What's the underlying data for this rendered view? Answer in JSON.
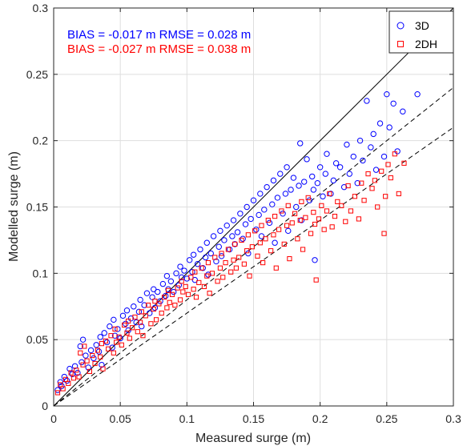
{
  "chart_data": {
    "type": "scatter",
    "xlabel": "Measured surge (m)",
    "ylabel": "Modelled surge (m)",
    "xlim": [
      0,
      0.3
    ],
    "ylim": [
      0,
      0.3
    ],
    "xticks": [
      "0",
      "0.05",
      "0.1",
      "0.15",
      "0.2",
      "0.25",
      "0.3"
    ],
    "yticks": [
      "0",
      "0.05",
      "0.1",
      "0.15",
      "0.2",
      "0.25",
      "0.3"
    ],
    "grid": true,
    "legend_position": "top-right",
    "annotations": [
      {
        "text": "BIAS = -0.017 m  RMSE = 0.028 m",
        "color": "#0000ff"
      },
      {
        "text": "BIAS = -0.027 m  RMSE = 0.038 m",
        "color": "#ff0000"
      }
    ],
    "reference_lines": [
      {
        "style": "solid",
        "x": [
          0,
          0.3
        ],
        "y": [
          0,
          0.3
        ]
      },
      {
        "style": "dashed",
        "x": [
          0,
          0.3
        ],
        "y": [
          0,
          0.24
        ]
      },
      {
        "style": "dashed",
        "x": [
          0,
          0.3
        ],
        "y": [
          0,
          0.21
        ]
      }
    ],
    "series": [
      {
        "name": "3D",
        "marker": "circle",
        "color": "#0000ff",
        "points": [
          [
            0.003,
            0.012
          ],
          [
            0.005,
            0.018
          ],
          [
            0.006,
            0.015
          ],
          [
            0.008,
            0.022
          ],
          [
            0.01,
            0.019
          ],
          [
            0.012,
            0.028
          ],
          [
            0.014,
            0.024
          ],
          [
            0.016,
            0.03
          ],
          [
            0.018,
            0.025
          ],
          [
            0.02,
            0.045
          ],
          [
            0.021,
            0.033
          ],
          [
            0.022,
            0.05
          ],
          [
            0.024,
            0.038
          ],
          [
            0.026,
            0.029
          ],
          [
            0.028,
            0.042
          ],
          [
            0.03,
            0.036
          ],
          [
            0.032,
            0.046
          ],
          [
            0.034,
            0.041
          ],
          [
            0.035,
            0.052
          ],
          [
            0.036,
            0.031
          ],
          [
            0.038,
            0.055
          ],
          [
            0.04,
            0.048
          ],
          [
            0.042,
            0.06
          ],
          [
            0.044,
            0.044
          ],
          [
            0.045,
            0.065
          ],
          [
            0.046,
            0.053
          ],
          [
            0.048,
            0.058
          ],
          [
            0.05,
            0.051
          ],
          [
            0.052,
            0.068
          ],
          [
            0.054,
            0.062
          ],
          [
            0.055,
            0.072
          ],
          [
            0.056,
            0.057
          ],
          [
            0.058,
            0.066
          ],
          [
            0.06,
            0.075
          ],
          [
            0.062,
            0.063
          ],
          [
            0.064,
            0.071
          ],
          [
            0.065,
            0.08
          ],
          [
            0.066,
            0.06
          ],
          [
            0.068,
            0.076
          ],
          [
            0.07,
            0.085
          ],
          [
            0.072,
            0.07
          ],
          [
            0.074,
            0.082
          ],
          [
            0.075,
            0.088
          ],
          [
            0.076,
            0.074
          ],
          [
            0.078,
            0.086
          ],
          [
            0.08,
            0.079
          ],
          [
            0.082,
            0.092
          ],
          [
            0.084,
            0.083
          ],
          [
            0.085,
            0.098
          ],
          [
            0.086,
            0.088
          ],
          [
            0.088,
            0.094
          ],
          [
            0.09,
            0.086
          ],
          [
            0.092,
            0.1
          ],
          [
            0.094,
            0.091
          ],
          [
            0.095,
            0.105
          ],
          [
            0.096,
            0.097
          ],
          [
            0.098,
            0.102
          ],
          [
            0.1,
            0.096
          ],
          [
            0.102,
            0.11
          ],
          [
            0.104,
            0.101
          ],
          [
            0.105,
            0.114
          ],
          [
            0.106,
            0.095
          ],
          [
            0.108,
            0.107
          ],
          [
            0.11,
            0.118
          ],
          [
            0.112,
            0.104
          ],
          [
            0.114,
            0.112
          ],
          [
            0.115,
            0.123
          ],
          [
            0.116,
            0.099
          ],
          [
            0.118,
            0.115
          ],
          [
            0.12,
            0.128
          ],
          [
            0.122,
            0.109
          ],
          [
            0.124,
            0.12
          ],
          [
            0.125,
            0.132
          ],
          [
            0.126,
            0.113
          ],
          [
            0.128,
            0.125
          ],
          [
            0.13,
            0.136
          ],
          [
            0.132,
            0.118
          ],
          [
            0.134,
            0.128
          ],
          [
            0.135,
            0.14
          ],
          [
            0.136,
            0.122
          ],
          [
            0.138,
            0.131
          ],
          [
            0.14,
            0.145
          ],
          [
            0.142,
            0.126
          ],
          [
            0.144,
            0.137
          ],
          [
            0.145,
            0.15
          ],
          [
            0.146,
            0.115
          ],
          [
            0.148,
            0.141
          ],
          [
            0.15,
            0.155
          ],
          [
            0.152,
            0.133
          ],
          [
            0.154,
            0.144
          ],
          [
            0.155,
            0.16
          ],
          [
            0.156,
            0.128
          ],
          [
            0.158,
            0.148
          ],
          [
            0.16,
            0.165
          ],
          [
            0.162,
            0.138
          ],
          [
            0.164,
            0.152
          ],
          [
            0.165,
            0.17
          ],
          [
            0.166,
            0.123
          ],
          [
            0.168,
            0.157
          ],
          [
            0.17,
            0.175
          ],
          [
            0.172,
            0.145
          ],
          [
            0.174,
            0.16
          ],
          [
            0.175,
            0.18
          ],
          [
            0.176,
            0.132
          ],
          [
            0.178,
            0.163
          ],
          [
            0.18,
            0.172
          ],
          [
            0.182,
            0.15
          ],
          [
            0.184,
            0.166
          ],
          [
            0.185,
            0.198
          ],
          [
            0.186,
            0.14
          ],
          [
            0.188,
            0.169
          ],
          [
            0.19,
            0.186
          ],
          [
            0.192,
            0.155
          ],
          [
            0.194,
            0.173
          ],
          [
            0.195,
            0.163
          ],
          [
            0.196,
            0.11
          ],
          [
            0.198,
            0.168
          ],
          [
            0.2,
            0.18
          ],
          [
            0.202,
            0.158
          ],
          [
            0.204,
            0.175
          ],
          [
            0.205,
            0.19
          ],
          [
            0.208,
            0.16
          ],
          [
            0.21,
            0.17
          ],
          [
            0.212,
            0.183
          ],
          [
            0.215,
            0.18
          ],
          [
            0.218,
            0.165
          ],
          [
            0.22,
            0.197
          ],
          [
            0.222,
            0.175
          ],
          [
            0.225,
            0.188
          ],
          [
            0.228,
            0.168
          ],
          [
            0.23,
            0.2
          ],
          [
            0.232,
            0.185
          ],
          [
            0.235,
            0.23
          ],
          [
            0.238,
            0.195
          ],
          [
            0.24,
            0.205
          ],
          [
            0.242,
            0.178
          ],
          [
            0.245,
            0.213
          ],
          [
            0.248,
            0.188
          ],
          [
            0.25,
            0.235
          ],
          [
            0.252,
            0.21
          ],
          [
            0.255,
            0.228
          ],
          [
            0.258,
            0.192
          ],
          [
            0.262,
            0.222
          ],
          [
            0.273,
            0.235
          ]
        ]
      },
      {
        "name": "2DH",
        "marker": "square",
        "color": "#ff0000",
        "points": [
          [
            0.003,
            0.01
          ],
          [
            0.005,
            0.016
          ],
          [
            0.007,
            0.013
          ],
          [
            0.009,
            0.02
          ],
          [
            0.011,
            0.017
          ],
          [
            0.013,
            0.025
          ],
          [
            0.015,
            0.021
          ],
          [
            0.017,
            0.027
          ],
          [
            0.019,
            0.022
          ],
          [
            0.02,
            0.04
          ],
          [
            0.022,
            0.031
          ],
          [
            0.023,
            0.045
          ],
          [
            0.025,
            0.034
          ],
          [
            0.027,
            0.026
          ],
          [
            0.029,
            0.038
          ],
          [
            0.031,
            0.032
          ],
          [
            0.033,
            0.042
          ],
          [
            0.035,
            0.037
          ],
          [
            0.036,
            0.047
          ],
          [
            0.037,
            0.028
          ],
          [
            0.039,
            0.049
          ],
          [
            0.041,
            0.043
          ],
          [
            0.043,
            0.053
          ],
          [
            0.045,
            0.04
          ],
          [
            0.046,
            0.058
          ],
          [
            0.047,
            0.048
          ],
          [
            0.049,
            0.052
          ],
          [
            0.051,
            0.046
          ],
          [
            0.053,
            0.061
          ],
          [
            0.055,
            0.055
          ],
          [
            0.056,
            0.064
          ],
          [
            0.057,
            0.051
          ],
          [
            0.059,
            0.059
          ],
          [
            0.061,
            0.067
          ],
          [
            0.063,
            0.056
          ],
          [
            0.065,
            0.063
          ],
          [
            0.066,
            0.071
          ],
          [
            0.067,
            0.053
          ],
          [
            0.069,
            0.068
          ],
          [
            0.071,
            0.076
          ],
          [
            0.073,
            0.062
          ],
          [
            0.075,
            0.073
          ],
          [
            0.076,
            0.079
          ],
          [
            0.077,
            0.065
          ],
          [
            0.079,
            0.077
          ],
          [
            0.081,
            0.07
          ],
          [
            0.083,
            0.082
          ],
          [
            0.085,
            0.074
          ],
          [
            0.086,
            0.087
          ],
          [
            0.087,
            0.078
          ],
          [
            0.089,
            0.084
          ],
          [
            0.091,
            0.076
          ],
          [
            0.093,
            0.089
          ],
          [
            0.095,
            0.08
          ],
          [
            0.096,
            0.094
          ],
          [
            0.097,
            0.086
          ],
          [
            0.099,
            0.09
          ],
          [
            0.101,
            0.084
          ],
          [
            0.103,
            0.097
          ],
          [
            0.105,
            0.088
          ],
          [
            0.106,
            0.101
          ],
          [
            0.107,
            0.082
          ],
          [
            0.109,
            0.093
          ],
          [
            0.111,
            0.104
          ],
          [
            0.113,
            0.09
          ],
          [
            0.115,
            0.098
          ],
          [
            0.116,
            0.108
          ],
          [
            0.117,
            0.085
          ],
          [
            0.119,
            0.1
          ],
          [
            0.121,
            0.112
          ],
          [
            0.123,
            0.094
          ],
          [
            0.125,
            0.104
          ],
          [
            0.126,
            0.115
          ],
          [
            0.127,
            0.097
          ],
          [
            0.129,
            0.108
          ],
          [
            0.131,
            0.118
          ],
          [
            0.133,
            0.101
          ],
          [
            0.135,
            0.11
          ],
          [
            0.136,
            0.122
          ],
          [
            0.137,
            0.104
          ],
          [
            0.139,
            0.112
          ],
          [
            0.141,
            0.125
          ],
          [
            0.143,
            0.107
          ],
          [
            0.145,
            0.117
          ],
          [
            0.146,
            0.129
          ],
          [
            0.147,
            0.098
          ],
          [
            0.149,
            0.12
          ],
          [
            0.151,
            0.132
          ],
          [
            0.153,
            0.113
          ],
          [
            0.155,
            0.123
          ],
          [
            0.156,
            0.136
          ],
          [
            0.157,
            0.108
          ],
          [
            0.159,
            0.126
          ],
          [
            0.161,
            0.14
          ],
          [
            0.163,
            0.117
          ],
          [
            0.165,
            0.129
          ],
          [
            0.166,
            0.143
          ],
          [
            0.167,
            0.104
          ],
          [
            0.169,
            0.133
          ],
          [
            0.171,
            0.147
          ],
          [
            0.173,
            0.122
          ],
          [
            0.175,
            0.136
          ],
          [
            0.176,
            0.151
          ],
          [
            0.177,
            0.111
          ],
          [
            0.179,
            0.138
          ],
          [
            0.181,
            0.145
          ],
          [
            0.183,
            0.126
          ],
          [
            0.185,
            0.14
          ],
          [
            0.186,
            0.154
          ],
          [
            0.187,
            0.118
          ],
          [
            0.189,
            0.142
          ],
          [
            0.191,
            0.157
          ],
          [
            0.193,
            0.13
          ],
          [
            0.195,
            0.146
          ],
          [
            0.196,
            0.137
          ],
          [
            0.197,
            0.095
          ],
          [
            0.199,
            0.141
          ],
          [
            0.201,
            0.151
          ],
          [
            0.203,
            0.133
          ],
          [
            0.205,
            0.147
          ],
          [
            0.207,
            0.16
          ],
          [
            0.209,
            0.135
          ],
          [
            0.211,
            0.143
          ],
          [
            0.213,
            0.154
          ],
          [
            0.216,
            0.151
          ],
          [
            0.219,
            0.139
          ],
          [
            0.221,
            0.166
          ],
          [
            0.223,
            0.147
          ],
          [
            0.226,
            0.158
          ],
          [
            0.229,
            0.141
          ],
          [
            0.231,
            0.168
          ],
          [
            0.233,
            0.155
          ],
          [
            0.236,
            0.175
          ],
          [
            0.239,
            0.164
          ],
          [
            0.241,
            0.17
          ],
          [
            0.243,
            0.15
          ],
          [
            0.246,
            0.177
          ],
          [
            0.249,
            0.158
          ],
          [
            0.251,
            0.182
          ],
          [
            0.253,
            0.172
          ],
          [
            0.256,
            0.19
          ],
          [
            0.259,
            0.16
          ],
          [
            0.263,
            0.183
          ],
          [
            0.248,
            0.13
          ]
        ]
      }
    ]
  }
}
